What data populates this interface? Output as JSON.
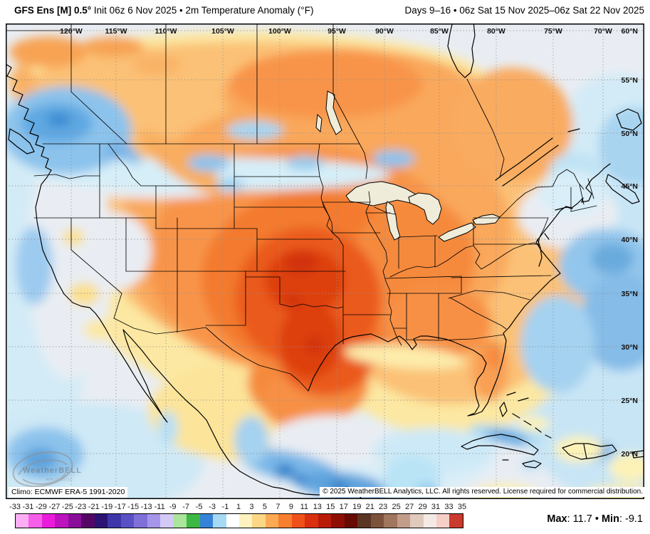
{
  "header": {
    "title_bold": "GFS Ens [M] 0.5°",
    "title_rest": " Init 06z 6 Nov 2025 • 2m Temperature Anomaly (°F)",
    "date_range": "Days 9–16 • 06z Sat 15 Nov 2025–06z Sat 22 Nov 2025"
  },
  "map": {
    "climo": "Climo: ECMWF ERA-5 1991-2020",
    "copyright": "© 2025 WeatherBELL Analytics, LLC. All rights reserved. License required for commercial distribution.",
    "watermark_line1": "WeatherBELL",
    "watermark_line2": "ANALYTICS LLC",
    "lon_labels": [
      "120°W",
      "115°W",
      "110°W",
      "105°W",
      "100°W",
      "95°W",
      "90°W",
      "85°W",
      "80°W",
      "75°W",
      "70°W"
    ],
    "lat_labels": [
      "60°N",
      "55°N",
      "50°N",
      "45°N",
      "40°N",
      "35°N",
      "30°N",
      "25°N",
      "20°N"
    ]
  },
  "colorbar": {
    "units": "°F",
    "tick_labels": [
      "-33",
      "-31",
      "-29",
      "-27",
      "-25",
      "-23",
      "-21",
      "-19",
      "-17",
      "-15",
      "-13",
      "-11",
      "-9",
      "-7",
      "-5",
      "-3",
      "-1",
      "1",
      "3",
      "5",
      "7",
      "9",
      "11",
      "13",
      "15",
      "17",
      "19",
      "21",
      "23",
      "25",
      "27",
      "29",
      "31",
      "33",
      "35"
    ],
    "segment_colors": [
      "#fbaef3",
      "#f65fe9",
      "#ea1cdc",
      "#bd12bd",
      "#8a0d9a",
      "#540667",
      "#2c1273",
      "#3e36a9",
      "#5a50c6",
      "#7f6fd8",
      "#a695e8",
      "#d3c9f6",
      "#a9e59b",
      "#3cb845",
      "#3583d8",
      "#a6d9f3",
      "#ffffff",
      "#fdf2c0",
      "#fcd786",
      "#fbaa54",
      "#f87e30",
      "#f0511b",
      "#da2f0e",
      "#b81c08",
      "#8f0e04",
      "#660a03",
      "#5b3524",
      "#7d523b",
      "#a0765e",
      "#c29d8a",
      "#e0cabc",
      "#f3eae5",
      "#f5cfc8",
      "#ca3a2e"
    ]
  },
  "stats": {
    "max_label": "Max",
    "max_value": "11.7",
    "separator": "•",
    "min_label": "Min",
    "min_value": "-9.1"
  }
}
